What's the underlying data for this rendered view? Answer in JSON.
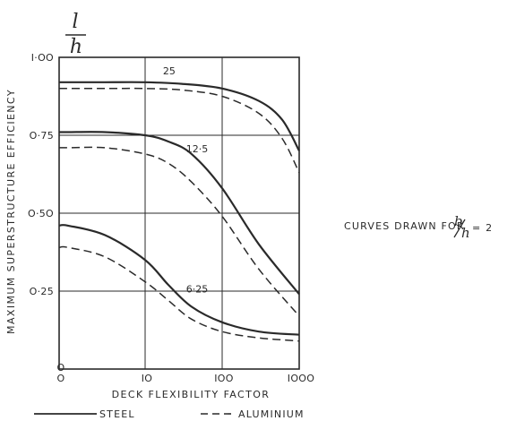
{
  "chart_data": {
    "type": "line",
    "title_fraction": {
      "numerator": "l",
      "denominator": "h"
    },
    "xlabel": "DECK FLEXIBILITY FACTOR",
    "ylabel": "MAXIMUM SUPERSTRUCTURE EFFICIENCY",
    "x_scale": "log",
    "x_ticks": [
      {
        "value": 0,
        "label": "O"
      },
      {
        "value": 10,
        "label": "IO"
      },
      {
        "value": 100,
        "label": "IOO"
      },
      {
        "value": 1000,
        "label": "IOOO"
      }
    ],
    "y_ticks": [
      {
        "value": 0,
        "label": "O"
      },
      {
        "value": 0.25,
        "label": "O·25"
      },
      {
        "value": 0.5,
        "label": "O·5O"
      },
      {
        "value": 0.75,
        "label": "O·75"
      },
      {
        "value": 1.0,
        "label": "I·OO"
      }
    ],
    "ylim": [
      0,
      1.0
    ],
    "grid": true,
    "note": {
      "prefix": "CURVES DRAWN FOR",
      "frac_num": "b",
      "frac_den": "h",
      "suffix": "= 2"
    },
    "legend": {
      "placement": "bottom",
      "items": [
        {
          "label": "STEEL",
          "style": "solid"
        },
        {
          "label": "ALUMINIUM",
          "style": "dashed"
        }
      ]
    },
    "curve_labels": [
      {
        "text": "25",
        "x": 20,
        "y": 0.945
      },
      {
        "text": "12·5",
        "x": 40,
        "y": 0.695
      },
      {
        "text": "6·25",
        "x": 40,
        "y": 0.245
      }
    ],
    "series": [
      {
        "group": "25",
        "material": "steel",
        "x": [
          1,
          3,
          10,
          30,
          100,
          300,
          600,
          1000
        ],
        "y": [
          0.92,
          0.92,
          0.92,
          0.915,
          0.9,
          0.86,
          0.8,
          0.7
        ]
      },
      {
        "group": "25",
        "material": "aluminium",
        "x": [
          1,
          3,
          10,
          30,
          100,
          300,
          600,
          1000
        ],
        "y": [
          0.9,
          0.9,
          0.9,
          0.895,
          0.875,
          0.82,
          0.74,
          0.63
        ]
      },
      {
        "group": "12·5",
        "material": "steel",
        "x": [
          1,
          3,
          10,
          20,
          40,
          100,
          300,
          1000
        ],
        "y": [
          0.76,
          0.76,
          0.75,
          0.73,
          0.69,
          0.58,
          0.4,
          0.24
        ]
      },
      {
        "group": "12·5",
        "material": "aluminium",
        "x": [
          1,
          3,
          10,
          20,
          40,
          100,
          300,
          1000
        ],
        "y": [
          0.71,
          0.71,
          0.69,
          0.66,
          0.6,
          0.49,
          0.32,
          0.17
        ]
      },
      {
        "group": "6·25",
        "material": "steel",
        "x": [
          1,
          3,
          10,
          20,
          40,
          100,
          300,
          1000
        ],
        "y": [
          0.46,
          0.43,
          0.35,
          0.27,
          0.2,
          0.15,
          0.12,
          0.11
        ]
      },
      {
        "group": "6·25",
        "material": "aluminium",
        "x": [
          1,
          3,
          10,
          20,
          40,
          100,
          300,
          1000
        ],
        "y": [
          0.39,
          0.36,
          0.28,
          0.22,
          0.16,
          0.12,
          0.1,
          0.09
        ]
      }
    ],
    "colors": {
      "ink": "#2a2a2a",
      "grid": "#2a2a2a",
      "background": "#ffffff"
    }
  }
}
